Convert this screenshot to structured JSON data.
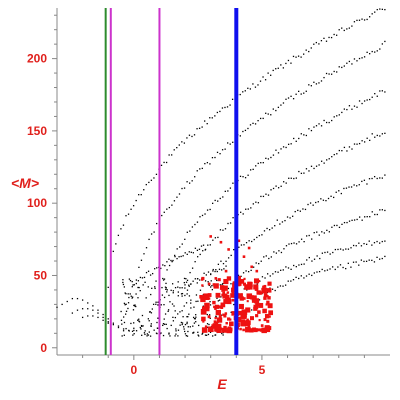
{
  "chart_data": {
    "type": "scatter",
    "xlabel": "E",
    "ylabel": "<M>",
    "xlim": [
      -3,
      10
    ],
    "ylim": [
      -5,
      235
    ],
    "x_ticks": [
      0,
      5
    ],
    "x_tick_labels": [
      "0",
      "5"
    ],
    "y_ticks": [
      0,
      50,
      100,
      150,
      200
    ],
    "y_tick_labels": [
      "0",
      "50",
      "100",
      "150",
      "200"
    ],
    "grid": false,
    "vertical_lines": [
      {
        "x": -1.1,
        "color": "#2e8b2e"
      },
      {
        "x": -0.9,
        "color": "#cc33cc"
      },
      {
        "x": 1.0,
        "color": "#cc33cc"
      },
      {
        "x": 4.0,
        "color": "#1010ee"
      }
    ],
    "series": [
      {
        "color": "#000000",
        "marker_size": 1.3,
        "bands": [
          {
            "x": [
              -1.0,
              9.8
            ],
            "y": [
              40,
              235
            ],
            "n": 110
          },
          {
            "x": [
              0.0,
              9.8
            ],
            "y": [
              30,
              210
            ],
            "n": 100
          },
          {
            "x": [
              1.0,
              9.8
            ],
            "y": [
              25,
              178
            ],
            "n": 90
          },
          {
            "x": [
              1.8,
              9.8
            ],
            "y": [
              24,
              150
            ],
            "n": 82
          },
          {
            "x": [
              2.4,
              9.8
            ],
            "y": [
              22,
              120
            ],
            "n": 75
          },
          {
            "x": [
              3.2,
              9.8
            ],
            "y": [
              22,
              95
            ],
            "n": 68
          },
          {
            "x": [
              3.8,
              9.8
            ],
            "y": [
              25,
              75
            ],
            "n": 60
          },
          {
            "x": [
              4.6,
              9.8
            ],
            "y": [
              26,
              62
            ],
            "n": 52
          },
          {
            "x": [
              -0.3,
              2.8
            ],
            "y": [
              30,
              70
            ],
            "n": 40
          },
          {
            "x": [
              0.6,
              3.6
            ],
            "y": [
              20,
              55
            ],
            "n": 36
          }
        ],
        "cluster": {
          "x": [
            -0.5,
            3.5
          ],
          "y": [
            8,
            48
          ],
          "n": 260
        },
        "tail": [
          [
            -3.0,
            28
          ],
          [
            -2.8,
            30
          ],
          [
            -2.6,
            32
          ],
          [
            -2.4,
            34
          ],
          [
            -2.2,
            34
          ],
          [
            -2.0,
            33
          ],
          [
            -1.8,
            31
          ],
          [
            -1.6,
            29
          ],
          [
            -1.4,
            26
          ],
          [
            -1.2,
            23
          ],
          [
            -1.0,
            20
          ],
          [
            -0.8,
            17
          ],
          [
            -0.6,
            15
          ],
          [
            -0.4,
            13
          ],
          [
            -0.2,
            12
          ],
          [
            0.0,
            12
          ],
          [
            -2.4,
            24
          ],
          [
            -2.2,
            26
          ],
          [
            -2.0,
            27
          ],
          [
            -1.8,
            27
          ],
          [
            -1.6,
            26
          ],
          [
            -1.4,
            24
          ],
          [
            -1.2,
            21
          ],
          [
            -1.0,
            18
          ],
          [
            -0.8,
            16
          ],
          [
            -0.6,
            14
          ],
          [
            -2.0,
            21
          ],
          [
            -1.8,
            22
          ],
          [
            -1.6,
            22
          ],
          [
            -1.4,
            21
          ],
          [
            -1.2,
            19
          ],
          [
            -1.0,
            17
          ]
        ]
      },
      {
        "color": "#ee1111",
        "marker_size": 2.6,
        "cluster": {
          "x": [
            2.6,
            5.4
          ],
          "y": [
            12,
            48
          ],
          "n": 190
        },
        "outliers": [
          [
            3.0,
            77
          ],
          [
            3.4,
            73
          ],
          [
            3.7,
            68
          ],
          [
            4.3,
            63
          ],
          [
            4.5,
            69
          ],
          [
            4.6,
            56
          ],
          [
            4.8,
            53
          ],
          [
            3.6,
            53
          ],
          [
            3.2,
            48
          ],
          [
            4.1,
            74
          ]
        ]
      }
    ]
  }
}
